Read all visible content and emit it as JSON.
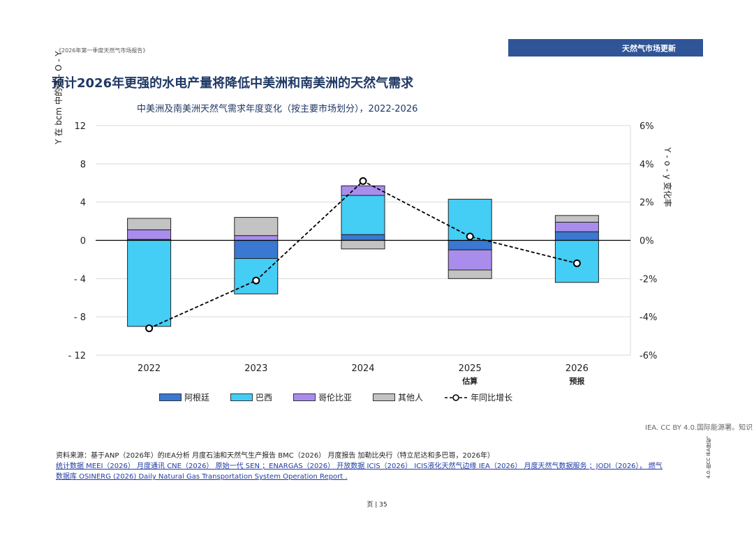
{
  "header": {
    "report_title": "《2026年第一季度天然气市场报告》",
    "section_tag": "天然气市场更新"
  },
  "main_title": "预计2026年更强的水电产量将降低中美洲和南美洲的天然气需求",
  "chart_data": {
    "type": "bar",
    "title": "中美洲及南美洲天然气需求年度变化（按主要市场划分），2022-2026",
    "categories": [
      "2022",
      "2023",
      "2024",
      "2025",
      "2026"
    ],
    "category_notes": [
      "",
      "",
      "",
      "估算",
      "预报"
    ],
    "ylabel": "Y 在 bcm 中的变 - O - Y",
    "y2label": "Y - o - y 变化率",
    "ylim": [
      -12,
      12
    ],
    "y_ticks": [
      "12",
      "8",
      "4",
      "0",
      "- 4",
      "- 8",
      "- 12"
    ],
    "y_tick_values": [
      12,
      8,
      4,
      0,
      -4,
      -8,
      -12
    ],
    "y2lim": [
      -6,
      6
    ],
    "y2_ticks": [
      "6%",
      "4%",
      "2%",
      "0%",
      "-2%",
      "-4%",
      "-6%"
    ],
    "y2_tick_values": [
      6,
      4,
      2,
      0,
      -2,
      -4,
      -6
    ],
    "series": [
      {
        "name": "阿根廷",
        "color": "#3a78d1",
        "values": [
          0.1,
          -1.9,
          0.6,
          -1.0,
          0.9
        ]
      },
      {
        "name": "巴西",
        "color": "#44cdf5",
        "values": [
          -9.0,
          -3.7,
          4.1,
          4.3,
          -4.4
        ]
      },
      {
        "name": "哥伦比亚",
        "color": "#a98ded",
        "values": [
          1.0,
          0.5,
          1.0,
          -2.1,
          1.0
        ]
      },
      {
        "name": "其他人",
        "color": "#c3c3c3",
        "values": [
          1.2,
          1.9,
          -0.9,
          -0.9,
          0.7
        ]
      }
    ],
    "line_series": {
      "name": "年同比增长",
      "axis": "right",
      "values": [
        -4.6,
        -2.1,
        3.1,
        0.2,
        -1.2
      ]
    }
  },
  "license": "IEA. CC BY 4.0.国际能源署。知识",
  "sources": {
    "line1": "资料来源：基于ANP（2026年）的IEA分析 月度石油和天然气生产报告 BMC（2026） 月度报告 加勒比央行（特立尼达和多巴哥，2026年）",
    "line2": "统计数据 MEEI（2026） 月度通讯 CNE（2026） 原始一代 SEN ；ENARGAS（2026） 开放数据 ICIS（2026） ICIS液化天然气边缘 IEA（2026） 月度天然气数据服务 ；JODI（2026）， 燃气",
    "line3": "数据库 OSINERG (2026) Daily Natural Gas Transportation System Operation Report ."
  },
  "cc_vertical": "4.0.由CC IEA授权。",
  "page_number": "页 | 35"
}
